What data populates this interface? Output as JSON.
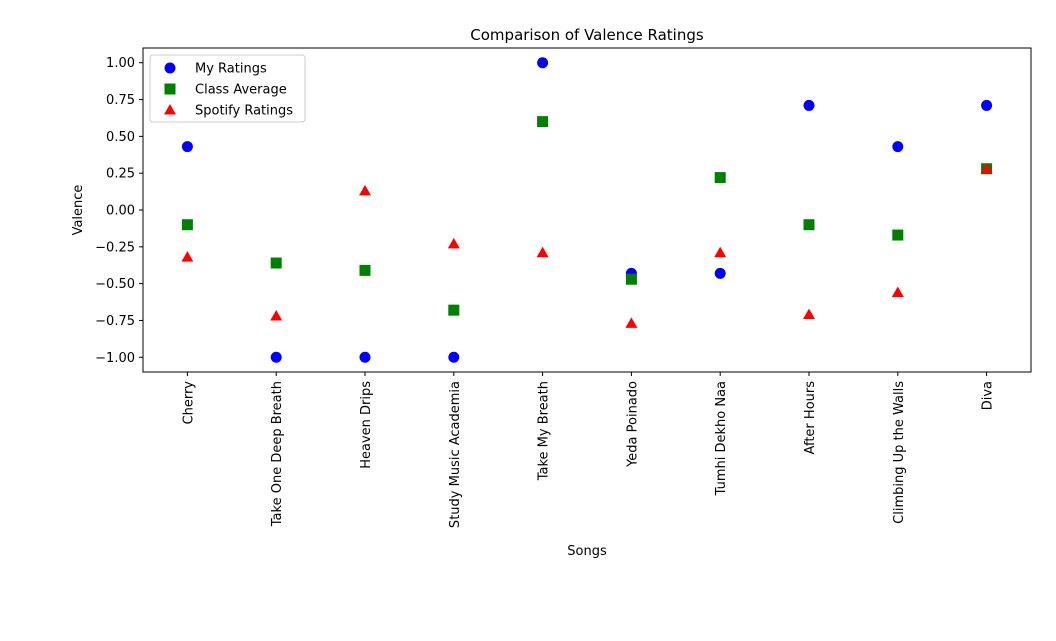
{
  "chart_data": {
    "type": "scatter",
    "title": "Comparison of Valence Ratings",
    "xlabel": "Songs",
    "ylabel": "Valence",
    "categories": [
      "Cherry",
      "Take One Deep Breath",
      "Heaven Drips",
      "Study Music Academia",
      "Take My Breath",
      "Yeda Poinado",
      "Tumhi Dekho Naa",
      "After Hours",
      "Climbing Up the Walls",
      "Diva"
    ],
    "ylim": [
      -1.1,
      1.1
    ],
    "yticks": [
      1.0,
      0.75,
      0.5,
      0.25,
      0.0,
      -0.25,
      -0.5,
      -0.75,
      -1.0
    ],
    "ytick_labels": [
      "1.00",
      "0.75",
      "0.50",
      "0.25",
      "0.00",
      "−0.25",
      "−0.50",
      "−0.75",
      "−1.00"
    ],
    "grid": false,
    "legend_position": "top-left",
    "series": [
      {
        "name": "My Ratings",
        "marker": "circle",
        "color": "#0000ff",
        "values": [
          0.43,
          -1.0,
          -1.0,
          -1.0,
          1.0,
          -0.43,
          -0.43,
          0.71,
          0.43,
          0.71
        ]
      },
      {
        "name": "Class Average",
        "marker": "square",
        "color": "#008000",
        "values": [
          -0.1,
          -0.36,
          -0.41,
          -0.68,
          0.6,
          -0.47,
          0.22,
          -0.1,
          -0.17,
          0.28
        ]
      },
      {
        "name": "Spotify Ratings",
        "marker": "triangle",
        "color": "#ff0000",
        "values": [
          -0.32,
          -0.72,
          0.13,
          -0.23,
          -0.29,
          -0.77,
          -0.29,
          -0.71,
          -0.56,
          0.28
        ]
      }
    ]
  }
}
